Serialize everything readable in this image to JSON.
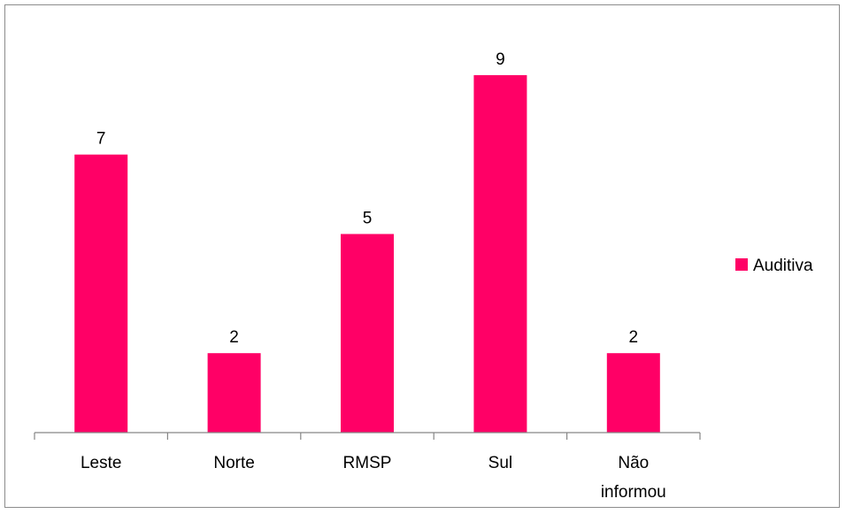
{
  "chart_data": {
    "type": "bar",
    "categories": [
      "Leste",
      "Norte",
      "RMSP",
      "Sul",
      "Não informou"
    ],
    "category_label_lines": [
      [
        "Leste"
      ],
      [
        "Norte"
      ],
      [
        "RMSP"
      ],
      [
        "Sul"
      ],
      [
        "Não",
        "informou"
      ]
    ],
    "series": [
      {
        "name": "Auditiva",
        "values": [
          7,
          2,
          5,
          9,
          2
        ],
        "color": "#ff0066"
      }
    ],
    "data_labels": [
      "7",
      "2",
      "5",
      "9",
      "2"
    ],
    "title": "",
    "xlabel": "",
    "ylabel": "",
    "ylim": [
      0,
      10
    ],
    "grid": false,
    "legend": "right",
    "axis_color": "#868686"
  }
}
